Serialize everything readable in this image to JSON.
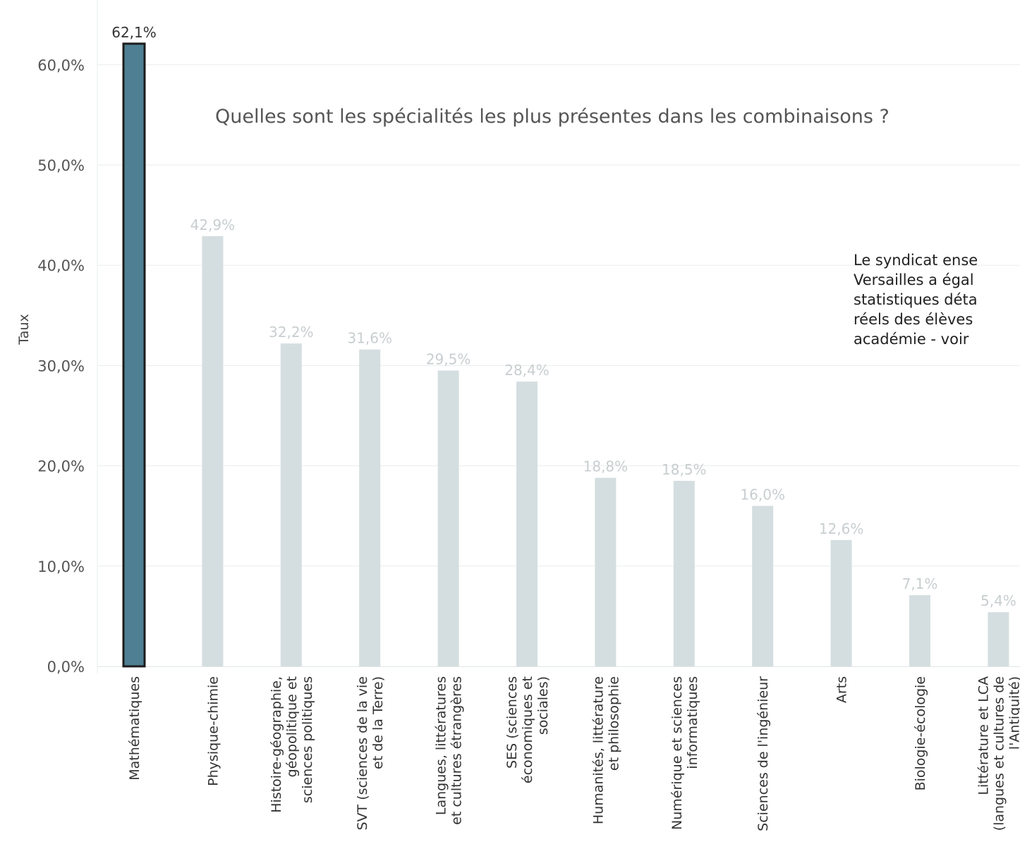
{
  "chart_data": {
    "type": "bar",
    "title": "Quelles sont les spécialités les plus présentes dans les combinaisons ?",
    "xlabel": "",
    "ylabel": "Taux",
    "ylim": [
      0,
      66
    ],
    "yticks": [
      "0,0%",
      "10,0%",
      "20,0%",
      "30,0%",
      "40,0%",
      "50,0%",
      "60,0%"
    ],
    "ytick_values": [
      0,
      10,
      20,
      30,
      40,
      50,
      60
    ],
    "grid": true,
    "highlight_index": 0,
    "colors": {
      "highlight": "#4e7f92",
      "highlight_border": "#1c1c1c",
      "muted": "#d4dee0",
      "grid": "#e9eded",
      "label_highlight": "#333333",
      "label_muted": "#c8ced0",
      "tick": "#555555"
    },
    "categories": [
      [
        "Mathématiques"
      ],
      [
        "Physique-chimie"
      ],
      [
        "Histoire-géographie,",
        "géopolitique et",
        "sciences politiques"
      ],
      [
        "SVT (sciences de la vie",
        "et de la Terre)"
      ],
      [
        "Langues, littératures",
        "et cultures étrangères"
      ],
      [
        "SES (sciences",
        "économiques et",
        "sociales)"
      ],
      [
        "Humanités, littérature",
        "et philosophie"
      ],
      [
        "Numérique et sciences",
        "informatiques"
      ],
      [
        "Sciences de l'ingénieur"
      ],
      [
        "Arts"
      ],
      [
        "Biologie-écologie"
      ],
      [
        "Littérature et LCA",
        "(langues et cultures de",
        "l'Antiquité)"
      ]
    ],
    "values": [
      62.1,
      42.9,
      32.2,
      31.6,
      29.5,
      28.4,
      18.8,
      18.5,
      16.0,
      12.6,
      7.1,
      5.4
    ],
    "value_labels": [
      "62,1%",
      "42,9%",
      "32,2%",
      "31,6%",
      "29,5%",
      "28,4%",
      "18,8%",
      "18,5%",
      "16,0%",
      "12,6%",
      "7,1%",
      "5,4%"
    ]
  },
  "side_note": {
    "lines": [
      "Le syndicat ense",
      "Versailles a égal",
      "statistiques déta",
      "réels des élèves",
      "académie  - voir"
    ]
  }
}
